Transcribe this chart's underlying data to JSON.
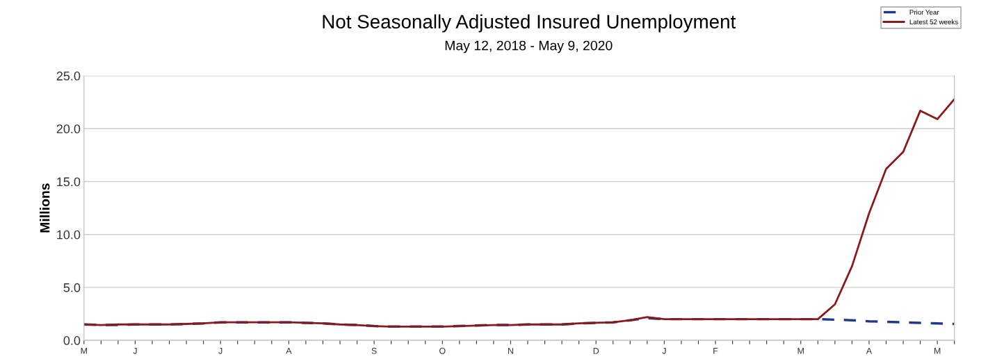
{
  "chart_data": {
    "type": "line",
    "title": "Not Seasonally Adjusted Insured Unemployment",
    "subtitle": "May 12, 2018 - May 9, 2020",
    "ylabel": "Millions",
    "categories": [
      "M",
      null,
      null,
      "J",
      null,
      null,
      null,
      null,
      "J",
      null,
      null,
      null,
      "A",
      null,
      null,
      null,
      null,
      "S",
      null,
      null,
      null,
      "O",
      null,
      null,
      null,
      "N",
      null,
      null,
      null,
      null,
      "D",
      null,
      null,
      null,
      "J",
      null,
      null,
      "F",
      null,
      null,
      null,
      null,
      "M",
      null,
      null,
      null,
      "A",
      null,
      null,
      null,
      "M",
      null
    ],
    "series": [
      {
        "name": "Prior Year",
        "color": "#1f3a8a",
        "line_style": "dashed",
        "values": [
          1.5,
          1.45,
          1.45,
          1.5,
          1.5,
          1.5,
          1.55,
          1.6,
          1.7,
          1.7,
          1.7,
          1.7,
          1.7,
          1.65,
          1.6,
          1.5,
          1.45,
          1.35,
          1.3,
          1.3,
          1.3,
          1.3,
          1.35,
          1.4,
          1.45,
          1.45,
          1.5,
          1.5,
          1.5,
          1.6,
          1.65,
          1.7,
          1.9,
          2.1,
          2.0,
          2.0,
          2.0,
          2.0,
          2.0,
          2.0,
          2.0,
          2.0,
          2.0,
          2.0,
          1.95,
          1.9,
          1.8,
          1.75,
          1.7,
          1.65,
          1.6,
          1.55
        ]
      },
      {
        "name": "Latest 52 weeks",
        "color": "#8b1a1a",
        "line_style": "solid",
        "values": [
          1.5,
          1.45,
          1.5,
          1.5,
          1.5,
          1.5,
          1.55,
          1.6,
          1.7,
          1.7,
          1.7,
          1.7,
          1.7,
          1.65,
          1.6,
          1.5,
          1.45,
          1.35,
          1.3,
          1.3,
          1.3,
          1.3,
          1.35,
          1.4,
          1.45,
          1.45,
          1.5,
          1.5,
          1.5,
          1.6,
          1.65,
          1.7,
          1.9,
          2.2,
          2.0,
          2.0,
          2.0,
          2.0,
          2.0,
          2.0,
          2.0,
          2.0,
          2.0,
          2.0,
          3.4,
          7.0,
          12.0,
          16.2,
          17.8,
          21.7,
          20.9,
          22.8
        ]
      }
    ],
    "ylim": [
      0,
      25
    ],
    "yticks": [
      {
        "value": 0,
        "label": "0.0"
      },
      {
        "value": 5,
        "label": "5.0"
      },
      {
        "value": 10,
        "label": "10.0"
      },
      {
        "value": 15,
        "label": "15.0"
      },
      {
        "value": 20,
        "label": "20.0"
      },
      {
        "value": 25,
        "label": "25.0"
      }
    ],
    "grid": "y",
    "legend": "top right"
  }
}
